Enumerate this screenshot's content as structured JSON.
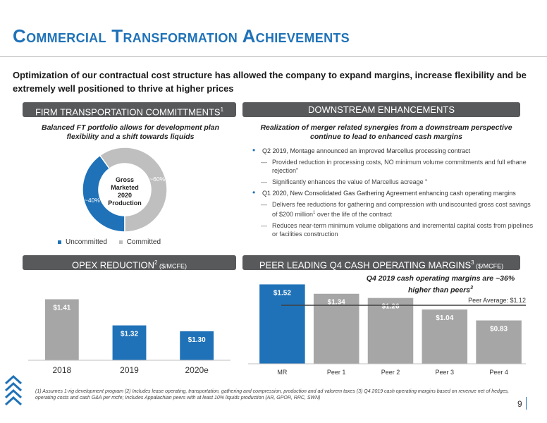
{
  "header": {
    "title": "Commercial Transformation Achievements",
    "subtitle": "Optimization of our contractual cost structure has allowed the company to expand margins, increase flexibility and be extremely well positioned to thrive at higher prices"
  },
  "ft_section": {
    "banner": "FIRM TRANSPORTATION COMMITTMENTS",
    "banner_sup": "1",
    "heading": "Balanced FT portfolio allows for development plan flexibility and a shift towards liquids",
    "donut_center": [
      "Gross",
      "Marketed",
      "2020",
      "Production"
    ],
    "chart_data": {
      "type": "pie",
      "categories": [
        "Uncommitted",
        "Committed"
      ],
      "values": [
        40,
        60
      ],
      "labels": [
        "~40%",
        "~60%"
      ],
      "colors": [
        "#1f72b8",
        "#bfbfbf"
      ],
      "legend": "bottom"
    }
  },
  "downstream": {
    "banner": "DOWNSTREAM ENHANCEMENTS",
    "heading": "Realization of merger related synergies from a downstream perspective continue to lead to enhanced cash margins",
    "bullets": [
      {
        "text": "Q2 2019, Montage announced an improved Marcellus processing contract",
        "subs": [
          "Provided reduction in processing costs, NO minimum volume commitments and full ethane rejection\"",
          "Significantly enhances the value of Marcellus acreage \""
        ]
      },
      {
        "text": "Q1 2020, New Consolidated Gas Gathering Agreement enhancing cash operating margins",
        "subs": [
          "Delivers fee reductions for gathering and compression with undiscounted gross cost savings of $200 million",
          "Reduces near-term minimum volume obligations and incremental capital costs from pipelines or facilities construction"
        ]
      }
    ],
    "sub_sup": "1",
    "sub_tail": " over the life of the contract"
  },
  "opex": {
    "banner": "OPEX REDUCTION",
    "banner_sup": "2",
    "banner_unit": " ($/MCFE)",
    "chart_data": {
      "type": "bar",
      "categories": [
        "2018",
        "2019",
        "2020e"
      ],
      "values": [
        1.41,
        1.32,
        1.3
      ],
      "labels": [
        "$1.41",
        "$1.32",
        "$1.30"
      ],
      "colors": [
        "#a6a6a6",
        "#1f72b8",
        "#1f72b8"
      ],
      "ylim": [
        1.2,
        1.45
      ]
    }
  },
  "margins": {
    "banner": "PEER LEADING Q4 CASH OPERATING MARGINS",
    "banner_sup": "3",
    "banner_unit": " ($/MCFE)",
    "heading": "Q4 2019 cash operating margins are ~36% higher than peers",
    "heading_sup": "3",
    "chart_data": {
      "type": "bar",
      "categories": [
        "MR",
        "Peer 1",
        "Peer 2",
        "Peer 3",
        "Peer 4"
      ],
      "values": [
        1.52,
        1.34,
        1.26,
        1.04,
        0.83
      ],
      "labels": [
        "$1.52",
        "$1.34",
        "$1.26",
        "$1.04",
        "$0.83"
      ],
      "colors": [
        "#1f72b8",
        "#a6a6a6",
        "#a6a6a6",
        "#a6a6a6",
        "#a6a6a6"
      ],
      "ylim": [
        0,
        1.62
      ],
      "reference_line": {
        "value": 1.12,
        "label": "Peer Average: $1.12"
      }
    }
  },
  "footnote": "(1) Assumes 1-rig development program  (2) Includes lease operating, transportation, gathering and compression, production and ad valorem taxes  (3) Q4 2019 cash operating margins based on revenue net of hedges, operating costs and cash G&A per mcfe; Includes Appalachian peers with at least 10% liquids production (AR, GPOR, RRC, SWN)",
  "page_number": "9"
}
